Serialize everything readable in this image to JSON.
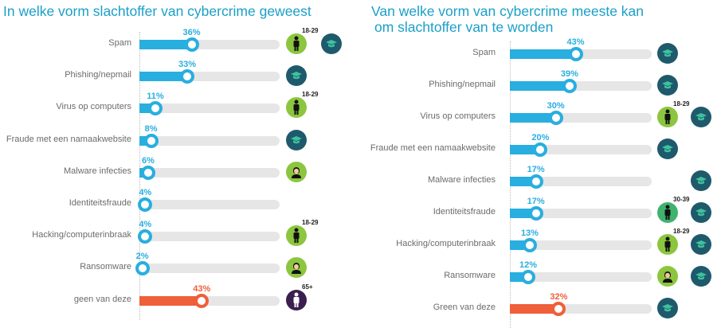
{
  "colors": {
    "blue": "#29aee0",
    "orange": "#ef5f3a",
    "track": "#e6e6e6",
    "grad_bg": "#1e5a6b",
    "person_bg": "#8cc63f",
    "person_teal": "#3fb36e",
    "senior_bg": "#3a1f4f"
  },
  "chart_data": [
    {
      "type": "bar",
      "title": "In welke vorm slachtoffer van cybercrime geweest",
      "unit": "%",
      "xlim": [
        0,
        100
      ],
      "categories": [
        "Spam",
        "Phishing/nepmail",
        "Virus op computers",
        "Fraude met een namaakwebsite",
        "Malware infecties",
        "Identiteitsfraude",
        "Hacking/computerinbraak",
        "Ransomware",
        "geen van deze"
      ],
      "values": [
        36,
        33,
        11,
        8,
        6,
        4,
        4,
        2,
        43
      ],
      "labels": [
        "36%",
        "33%",
        "11%",
        "8%",
        "6%",
        "4%",
        "4%",
        "2%",
        "43%"
      ],
      "highlight": [
        false,
        false,
        false,
        false,
        false,
        false,
        false,
        false,
        true
      ],
      "icons": [
        [
          {
            "t": "person",
            "age": "18-29"
          },
          {
            "t": "grad"
          }
        ],
        [
          {
            "t": "grad"
          }
        ],
        [
          {
            "t": "person",
            "age": "18-29"
          }
        ],
        [
          {
            "t": "grad"
          }
        ],
        [
          {
            "t": "face"
          }
        ],
        [],
        [
          {
            "t": "person",
            "age": "18-29"
          }
        ],
        [
          {
            "t": "face"
          }
        ],
        [
          {
            "t": "senior",
            "age": "65+"
          }
        ]
      ]
    },
    {
      "type": "bar",
      "title": "Van welke vorm van cybercrime meeste kan",
      "title2": "om  slachtoffer van te worden",
      "unit": "%",
      "xlim": [
        0,
        100
      ],
      "categories": [
        "Spam",
        "Phishing/nepmail",
        "Virus op computers",
        "Fraude met een namaakwebsite",
        "Malware infecties",
        "Identiteitsfraude",
        "Hacking/computerinbraak",
        "Ransomware",
        "Green van deze"
      ],
      "values": [
        43,
        39,
        30,
        20,
        17,
        17,
        13,
        12,
        32
      ],
      "labels": [
        "43%",
        "39%",
        "30%",
        "20%",
        "17%",
        "17%",
        "13%",
        "12%",
        "32%"
      ],
      "highlight": [
        false,
        false,
        false,
        false,
        false,
        false,
        false,
        false,
        true
      ],
      "icons": [
        [
          {
            "t": "grad"
          }
        ],
        [
          {
            "t": "grad"
          }
        ],
        [
          {
            "t": "person",
            "age": "18-29"
          },
          {
            "t": "grad"
          }
        ],
        [
          {
            "t": "grad"
          }
        ],
        [
          null,
          {
            "t": "grad"
          }
        ],
        [
          {
            "t": "personteal",
            "age": "30-39"
          },
          {
            "t": "grad"
          }
        ],
        [
          {
            "t": "person",
            "age": "18-29"
          },
          {
            "t": "grad"
          }
        ],
        [
          {
            "t": "face"
          },
          {
            "t": "grad"
          }
        ],
        [
          {
            "t": "grad"
          }
        ]
      ]
    }
  ]
}
